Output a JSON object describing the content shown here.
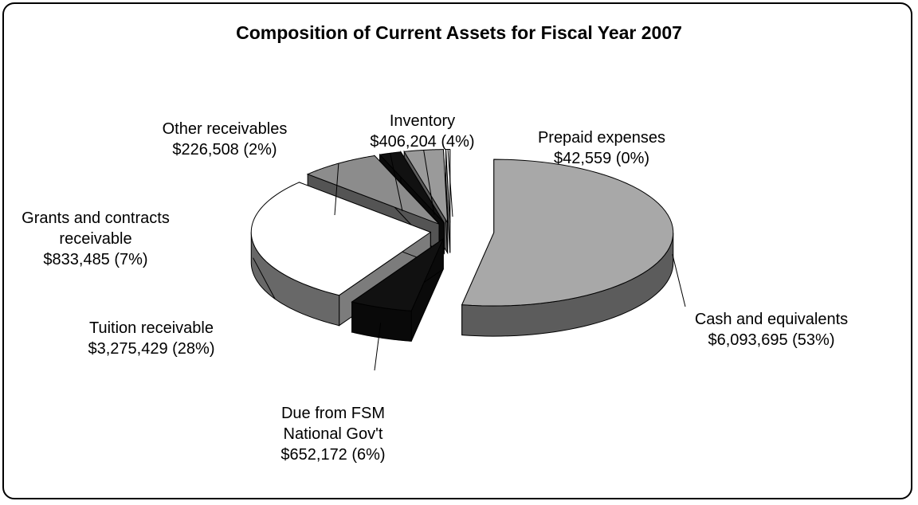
{
  "chart_data": {
    "type": "pie",
    "title": "Composition of Current Assets for Fiscal Year 2007",
    "categories": [
      "Cash and equivalents",
      "Due from FSM National Gov't",
      "Tuition receivable",
      "Grants and contracts receivable",
      "Other receivables",
      "Inventory",
      "Prepaid expenses"
    ],
    "values": [
      6093695,
      652172,
      3275429,
      833485,
      226508,
      406204,
      42559
    ],
    "value_labels": [
      "$6,093,695 (53%)",
      "$652,172 (6%)",
      "$3,275,429 (28%)",
      "$833,485 (7%)",
      "$226,508 (2%)",
      "$406,204 (4%)",
      "$42,559 (0%)"
    ],
    "colors": [
      "#a8a8a8",
      "#111111",
      "#ffffff",
      "#8c8c8c",
      "#111111",
      "#9a9a9a",
      "#f0f0f0"
    ]
  }
}
